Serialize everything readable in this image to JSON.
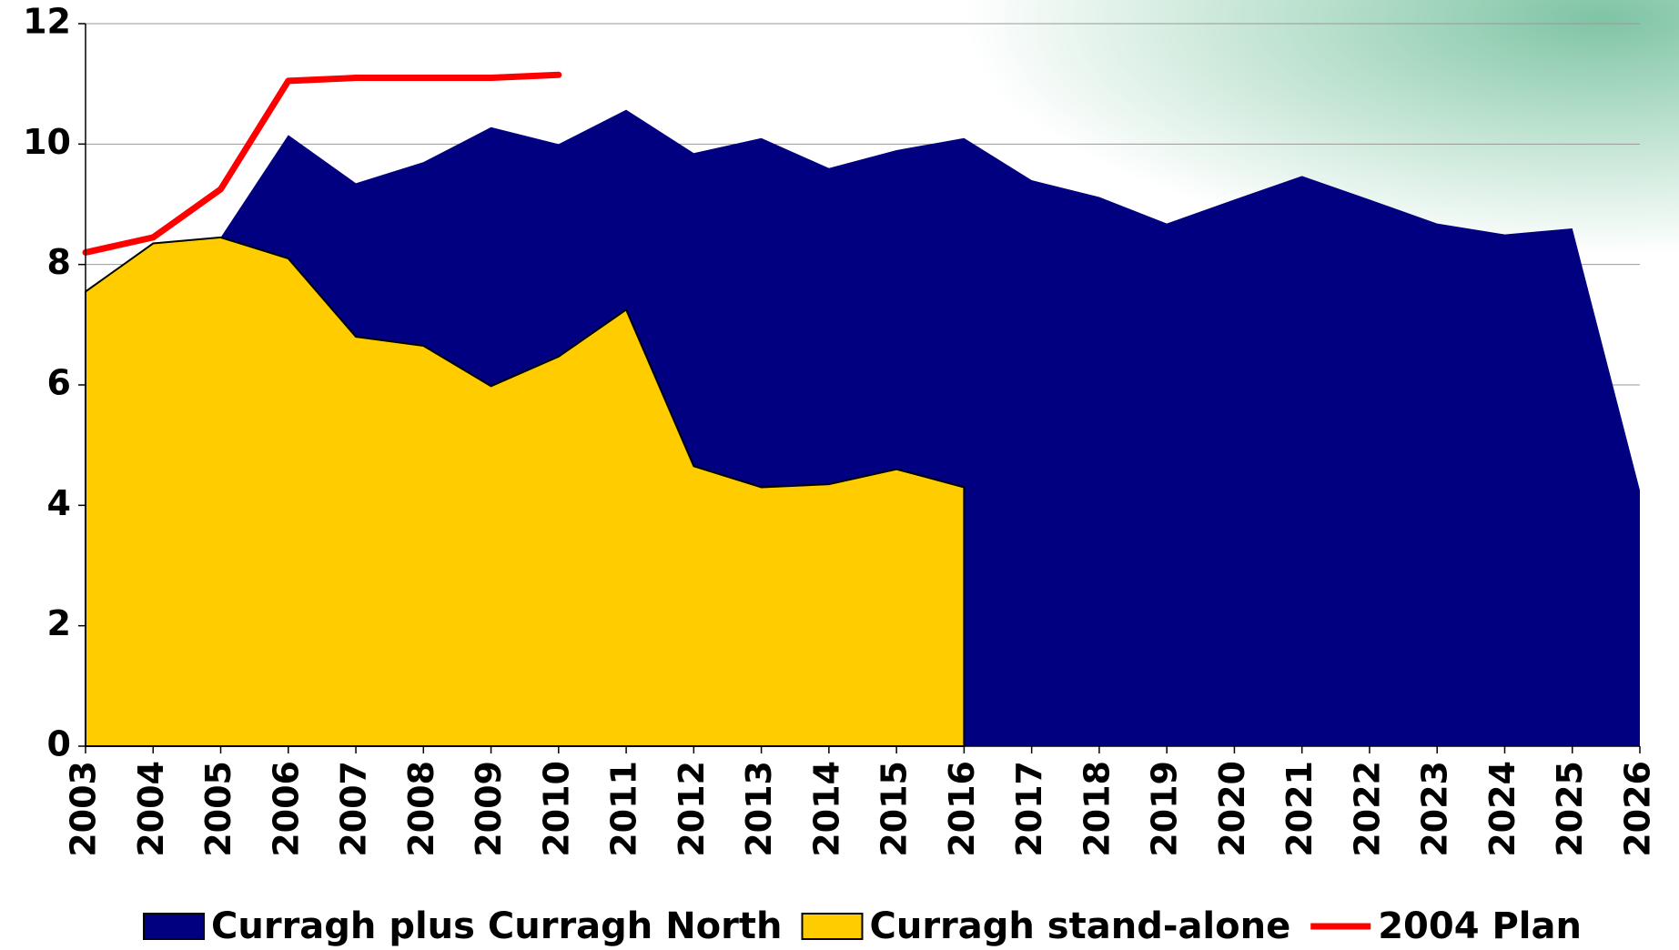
{
  "chart_data": {
    "type": "area",
    "categories": [
      "2003",
      "2004",
      "2005",
      "2006",
      "2007",
      "2008",
      "2009",
      "2010",
      "2011",
      "2012",
      "2013",
      "2014",
      "2015",
      "2016",
      "2017",
      "2018",
      "2019",
      "2020",
      "2021",
      "2022",
      "2023",
      "2024",
      "2025",
      "2026"
    ],
    "series": [
      {
        "name": "Curragh plus Curragh North",
        "color": "#000080",
        "kind": "area",
        "values": [
          null,
          null,
          8.45,
          10.15,
          9.35,
          9.7,
          10.28,
          10.0,
          10.57,
          9.85,
          10.1,
          9.6,
          9.9,
          10.1,
          9.4,
          9.12,
          8.68,
          9.08,
          9.47,
          9.08,
          8.68,
          8.5,
          8.6,
          4.25
        ]
      },
      {
        "name": "Curragh stand-alone",
        "color": "#ffcc00",
        "kind": "area",
        "values": [
          7.55,
          8.35,
          8.45,
          8.1,
          6.8,
          6.65,
          5.98,
          6.47,
          7.25,
          4.65,
          4.3,
          4.35,
          4.6,
          4.3,
          null,
          null,
          null,
          null,
          null,
          null,
          null,
          null,
          null,
          null
        ]
      },
      {
        "name": "2004 Plan",
        "color": "#ff0000",
        "kind": "line",
        "values": [
          8.2,
          8.45,
          9.25,
          11.05,
          11.1,
          11.1,
          11.1,
          11.15,
          null,
          null,
          null,
          null,
          null,
          null,
          null,
          null,
          null,
          null,
          null,
          null,
          null,
          null,
          null,
          null
        ]
      }
    ],
    "ylim": [
      0,
      12
    ],
    "yticks": [
      0,
      2,
      4,
      6,
      8,
      10,
      12
    ],
    "grid": true
  }
}
